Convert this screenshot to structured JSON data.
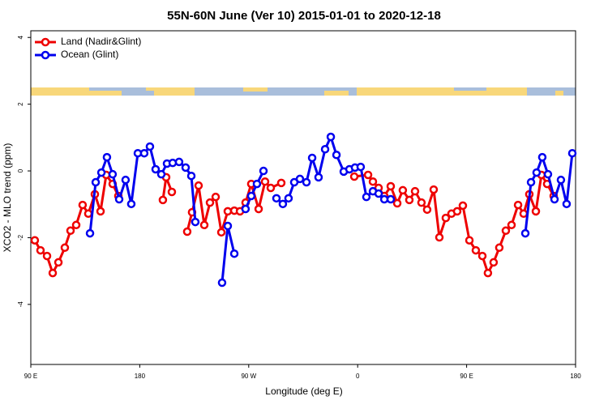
{
  "chart_data": {
    "type": "line",
    "title": "55N-60N June (Ver 10)   2015-01-01 to 2020-12-18",
    "x_label": "Longitude (deg E)",
    "y_label": "XCO2 - MLO trend (ppm)",
    "xlim": [
      90,
      540
    ],
    "ylim": [
      -5.8,
      4.2
    ],
    "xticks": [
      {
        "value": 90,
        "label": "90 E"
      },
      180,
      {
        "value": 270,
        "label": "90 W"
      },
      {
        "value": 360,
        "label": "0"
      },
      {
        "value": 450,
        "label": "90 E"
      },
      {
        "value": 540,
        "label": "180"
      }
    ],
    "yticks": [
      -4,
      -2,
      0,
      2,
      4
    ],
    "legend": "top-left",
    "series": [
      {
        "name": "Land (Nadir&Glint)",
        "color": "#ee0000",
        "x": [
          93.3,
          98.0,
          103.4,
          108.1,
          112.8,
          118.1,
          122.8,
          127.5,
          132.8,
          137.5,
          142.9,
          147.6,
          152.3,
          157.6,
          162.3,
          null,
          199.1,
          201.8,
          206.5,
          null,
          219.2,
          223.2,
          228.6,
          233.3,
          238.0,
          242.7,
          247.4,
          252.7,
          258.1,
          262.8,
          267.4,
          272.1,
          278.2,
          283.5,
          288.2,
          296.9,
          null,
          357.2,
          368.6,
          372.6,
          377.3,
          382.0,
          387.3,
          392.7,
          397.3,
          402.7,
          407.4,
          412.7,
          417.4,
          422.8,
          427.5,
          432.8,
          437.5,
          442.2,
          446.9,
          452.3,
          457.6,
          463.0,
          467.6,
          472.3,
          477.0,
          482.4,
          487.1,
          492.5,
          497.1,
          501.8,
          507.2,
          511.8,
          516.5,
          521.9
        ],
        "values": [
          -2.08,
          -2.38,
          -2.55,
          -3.06,
          -2.74,
          -2.3,
          -1.79,
          -1.62,
          -1.02,
          -1.28,
          -0.7,
          -1.21,
          -0.12,
          -0.39,
          -0.75,
          null,
          -0.87,
          -0.19,
          -0.63,
          null,
          -1.82,
          -1.24,
          -0.44,
          -1.62,
          -0.95,
          -0.78,
          -1.84,
          -1.21,
          -1.19,
          -1.21,
          -0.95,
          -0.39,
          -1.14,
          -0.32,
          -0.51,
          -0.36,
          null,
          -0.17,
          -0.12,
          -0.32,
          -0.51,
          -0.75,
          -0.46,
          -0.97,
          -0.58,
          -0.87,
          -0.61,
          -0.95,
          -1.16,
          -0.56,
          -1.99,
          -1.41,
          -1.28,
          -1.21,
          -1.04,
          -2.08,
          -2.38,
          -2.55,
          -3.06,
          -2.74,
          -2.3,
          -1.79,
          -1.62,
          -1.02,
          -1.28,
          -0.7,
          -1.21,
          -0.12,
          -0.39,
          -0.75
        ]
      },
      {
        "name": "Ocean (Glint)",
        "color": "#0000ee",
        "x": [
          138.9,
          143.6,
          148.3,
          152.9,
          157.6,
          163.0,
          168.3,
          173.0,
          178.4,
          183.7,
          188.4,
          193.1,
          197.8,
          202.5,
          207.2,
          212.5,
          217.9,
          222.6,
          225.9,
          null,
          248.0,
          252.7,
          258.1,
          null,
          267.4,
          272.1,
          276.8,
          282.2,
          null,
          292.9,
          298.2,
          302.9,
          307.6,
          312.3,
          317.7,
          322.4,
          327.7,
          333.1,
          337.8,
          342.5,
          348.5,
          353.2,
          357.8,
          362.5,
          367.2,
          372.6,
          377.3,
          382.0,
          387.3,
          null,
          498.5,
          503.2,
          507.8,
          512.5,
          517.2,
          522.6,
          527.9,
          532.6,
          537.3
        ],
        "values": [
          -1.87,
          -0.34,
          -0.05,
          0.41,
          -0.1,
          -0.85,
          -0.27,
          -0.99,
          0.53,
          0.53,
          0.73,
          0.05,
          -0.1,
          0.22,
          0.24,
          0.27,
          0.1,
          -0.15,
          -1.53,
          null,
          -3.35,
          -1.65,
          -2.48,
          null,
          -1.14,
          -0.75,
          -0.39,
          0.0,
          null,
          -0.82,
          -0.99,
          -0.82,
          -0.34,
          -0.24,
          -0.34,
          0.39,
          -0.19,
          0.65,
          1.02,
          0.48,
          -0.02,
          0.05,
          0.1,
          0.12,
          -0.78,
          -0.61,
          -0.68,
          -0.85,
          -0.85,
          null,
          -1.87,
          -0.34,
          -0.05,
          0.41,
          -0.1,
          -0.85,
          -0.27,
          -0.99,
          0.53
        ]
      }
    ]
  }
}
